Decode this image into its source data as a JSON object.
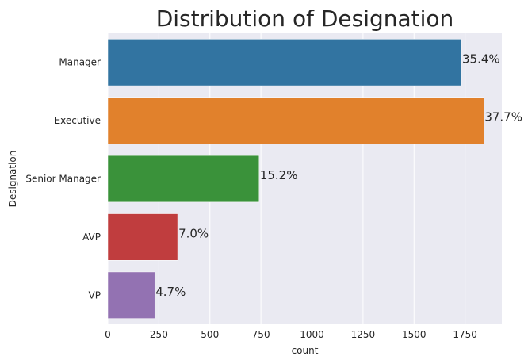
{
  "chart_data": {
    "type": "bar",
    "orientation": "horizontal",
    "title": "Distribution of Designation",
    "xlabel": "count",
    "ylabel": "Designation",
    "categories": [
      "Manager",
      "Executive",
      "Senior Manager",
      "AVP",
      "VP"
    ],
    "values": [
      1732,
      1842,
      741,
      342,
      230
    ],
    "data_labels": [
      "35.4%",
      "37.7%",
      "15.2%",
      "7.0%",
      "4.7%"
    ],
    "colors": [
      "#3274a1",
      "#e1812c",
      "#3a923a",
      "#c03d3e",
      "#9372b2"
    ],
    "xlim": [
      0,
      1930
    ],
    "xticks": [
      0,
      250,
      500,
      750,
      1000,
      1250,
      1500,
      1750
    ],
    "grid": true,
    "background": "#eaeaf2"
  }
}
